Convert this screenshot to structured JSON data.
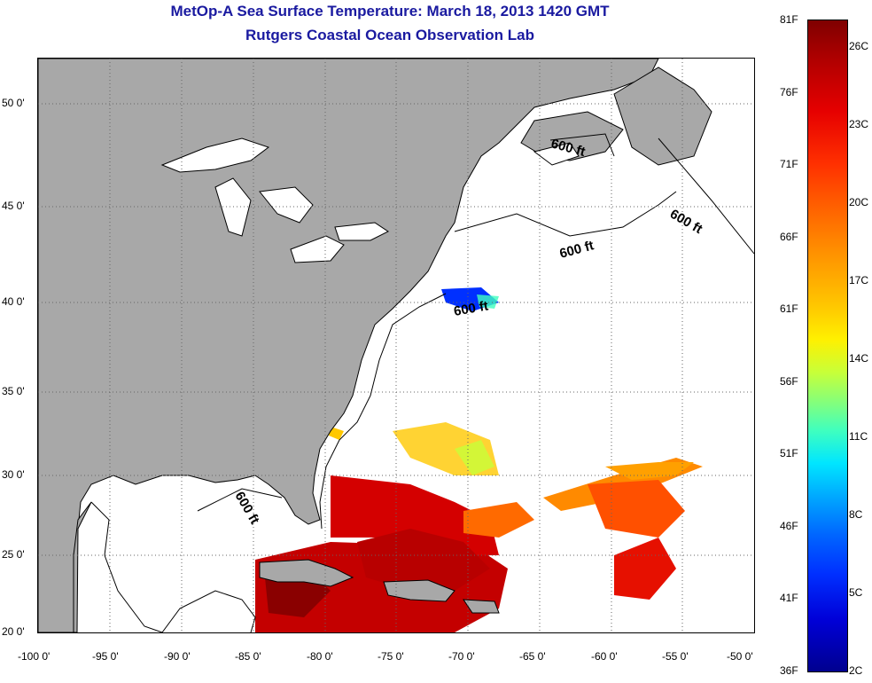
{
  "title": {
    "line1": "MetOp-A Sea Surface Temperature:  March 18, 2013 1420 GMT",
    "line2": "Rutgers Coastal Ocean Observation Lab"
  },
  "map": {
    "land_color": "#a8a8a8",
    "ocean_color": "#ffffff",
    "lat_range": [
      20,
      52.5
    ],
    "lon_range": [
      -100,
      -50
    ],
    "lat_ticks": [
      "50 0'",
      "45 0'",
      "40 0'",
      "35 0'",
      "30 0'",
      "25 0'",
      "20 0'"
    ],
    "lon_ticks": [
      "-100 0'",
      "-95 0'",
      "-90 0'",
      "-85 0'",
      "-80 0'",
      "-75 0'",
      "-70 0'",
      "-65 0'",
      "-60 0'",
      "-55 0'",
      "-50 0'"
    ],
    "contour_labels": [
      "600 ft",
      "600 ft",
      "600 ft",
      "600 ft",
      "600 ft"
    ]
  },
  "colorbar": {
    "fahrenheit": [
      "81F",
      "76F",
      "71F",
      "66F",
      "61F",
      "56F",
      "51F",
      "46F",
      "41F",
      "36F"
    ],
    "celsius": [
      "26C",
      "23C",
      "20C",
      "17C",
      "14C",
      "11C",
      "8C",
      "5C",
      "2C"
    ]
  }
}
